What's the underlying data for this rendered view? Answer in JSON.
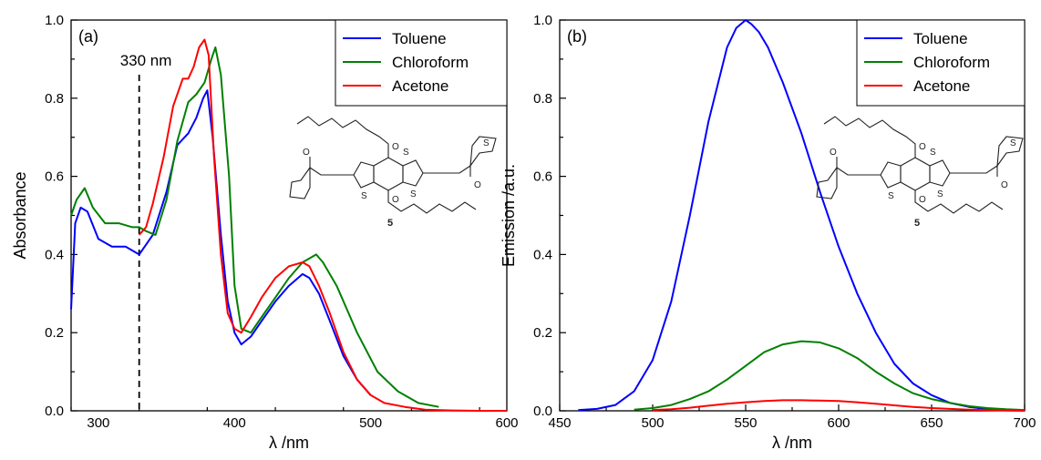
{
  "chart_data": [
    {
      "type": "line",
      "panel_label": "(a)",
      "xlabel": "λ /nm",
      "ylabel": "Absorbance",
      "xlim": [
        280,
        600
      ],
      "ylim": [
        0.0,
        1.0
      ],
      "xticks": [
        300,
        400,
        500,
        600
      ],
      "yticks": [
        0.0,
        0.2,
        0.4,
        0.6,
        0.8,
        1.0
      ],
      "ytick_labels": [
        "0.0",
        "0.2",
        "0.4",
        "0.6",
        "0.8",
        "1.0"
      ],
      "legend_position": "top-right",
      "annotation": {
        "text": "330 nm",
        "x": 330
      },
      "molecule_label": "5",
      "molecule_atoms": [
        "S",
        "S",
        "S",
        "S",
        "O",
        "O",
        "O",
        "O"
      ],
      "series": [
        {
          "name": "Toluene",
          "color": "#0000ff",
          "x": [
            280,
            283,
            287,
            292,
            300,
            310,
            320,
            330,
            340,
            350,
            358,
            366,
            372,
            377,
            380,
            384,
            390,
            395,
            400,
            405,
            412,
            420,
            430,
            440,
            450,
            455,
            462,
            470,
            480,
            490,
            500
          ],
          "y": [
            0.26,
            0.48,
            0.52,
            0.51,
            0.44,
            0.42,
            0.42,
            0.4,
            0.45,
            0.56,
            0.68,
            0.71,
            0.75,
            0.8,
            0.82,
            0.7,
            0.45,
            0.28,
            0.2,
            0.17,
            0.19,
            0.23,
            0.28,
            0.32,
            0.35,
            0.34,
            0.3,
            0.23,
            0.14,
            0.08,
            0.04
          ]
        },
        {
          "name": "Chloroform",
          "color": "#008000",
          "x": [
            280,
            284,
            290,
            296,
            305,
            315,
            325,
            330,
            335,
            342,
            350,
            358,
            366,
            372,
            378,
            383,
            386,
            390,
            396,
            400,
            405,
            412,
            420,
            430,
            440,
            450,
            460,
            465,
            475,
            490,
            505,
            520,
            535,
            550
          ],
          "y": [
            0.5,
            0.54,
            0.57,
            0.52,
            0.48,
            0.48,
            0.47,
            0.47,
            0.46,
            0.45,
            0.54,
            0.69,
            0.79,
            0.81,
            0.84,
            0.9,
            0.93,
            0.86,
            0.6,
            0.32,
            0.21,
            0.2,
            0.24,
            0.29,
            0.34,
            0.38,
            0.4,
            0.38,
            0.32,
            0.2,
            0.1,
            0.05,
            0.02,
            0.01
          ]
        },
        {
          "name": "Acetone",
          "color": "#ff0000",
          "x": [
            330,
            335,
            340,
            348,
            355,
            362,
            366,
            370,
            374,
            378,
            381,
            385,
            390,
            395,
            400,
            405,
            412,
            420,
            430,
            440,
            450,
            455,
            462,
            470,
            480,
            490,
            500,
            510,
            525,
            540,
            560,
            580,
            600
          ],
          "y": [
            0.45,
            0.47,
            0.53,
            0.65,
            0.78,
            0.85,
            0.85,
            0.88,
            0.93,
            0.95,
            0.91,
            0.65,
            0.4,
            0.25,
            0.21,
            0.2,
            0.24,
            0.29,
            0.34,
            0.37,
            0.38,
            0.37,
            0.32,
            0.25,
            0.15,
            0.08,
            0.04,
            0.02,
            0.01,
            0.003,
            0.001,
            0.0,
            0.0
          ]
        }
      ]
    },
    {
      "type": "line",
      "panel_label": "(b)",
      "xlabel": "λ /nm",
      "ylabel": "Emission /a.u.",
      "xlim": [
        450,
        700
      ],
      "ylim": [
        0.0,
        1.0
      ],
      "xticks": [
        450,
        500,
        550,
        600,
        650,
        700
      ],
      "yticks": [
        0.0,
        0.2,
        0.4,
        0.6,
        0.8,
        1.0
      ],
      "ytick_labels": [
        "0.0",
        "0.2",
        "0.4",
        "0.6",
        "0.8",
        "1.0"
      ],
      "legend_position": "top-right",
      "molecule_label": "5",
      "molecule_atoms": [
        "S",
        "S",
        "S",
        "S",
        "O",
        "O",
        "O",
        "O"
      ],
      "series": [
        {
          "name": "Toluene",
          "color": "#0000ff",
          "x": [
            460,
            470,
            480,
            490,
            500,
            510,
            520,
            530,
            540,
            545,
            550,
            553,
            557,
            562,
            570,
            580,
            590,
            600,
            610,
            620,
            630,
            640,
            650,
            660,
            670,
            680,
            690,
            700
          ],
          "y": [
            0.002,
            0.005,
            0.015,
            0.05,
            0.13,
            0.28,
            0.5,
            0.74,
            0.93,
            0.98,
            1.0,
            0.99,
            0.97,
            0.93,
            0.84,
            0.71,
            0.56,
            0.42,
            0.3,
            0.2,
            0.12,
            0.07,
            0.04,
            0.02,
            0.01,
            0.005,
            0.002,
            0.001
          ]
        },
        {
          "name": "Chloroform",
          "color": "#008000",
          "x": [
            490,
            500,
            510,
            520,
            530,
            540,
            550,
            560,
            570,
            580,
            590,
            600,
            610,
            620,
            630,
            640,
            650,
            660,
            670,
            680,
            690,
            700
          ],
          "y": [
            0.003,
            0.007,
            0.015,
            0.03,
            0.05,
            0.08,
            0.115,
            0.15,
            0.17,
            0.178,
            0.175,
            0.16,
            0.135,
            0.1,
            0.07,
            0.045,
            0.03,
            0.02,
            0.012,
            0.007,
            0.004,
            0.002
          ]
        },
        {
          "name": "Acetone",
          "color": "#ff0000",
          "x": [
            500,
            510,
            520,
            530,
            540,
            550,
            560,
            570,
            580,
            590,
            600,
            610,
            620,
            630,
            640,
            650,
            660,
            670,
            680,
            690,
            700
          ],
          "y": [
            0.002,
            0.004,
            0.008,
            0.013,
            0.018,
            0.022,
            0.025,
            0.027,
            0.027,
            0.026,
            0.025,
            0.022,
            0.018,
            0.014,
            0.01,
            0.007,
            0.005,
            0.003,
            0.002,
            0.001,
            0.0
          ]
        }
      ]
    }
  ]
}
